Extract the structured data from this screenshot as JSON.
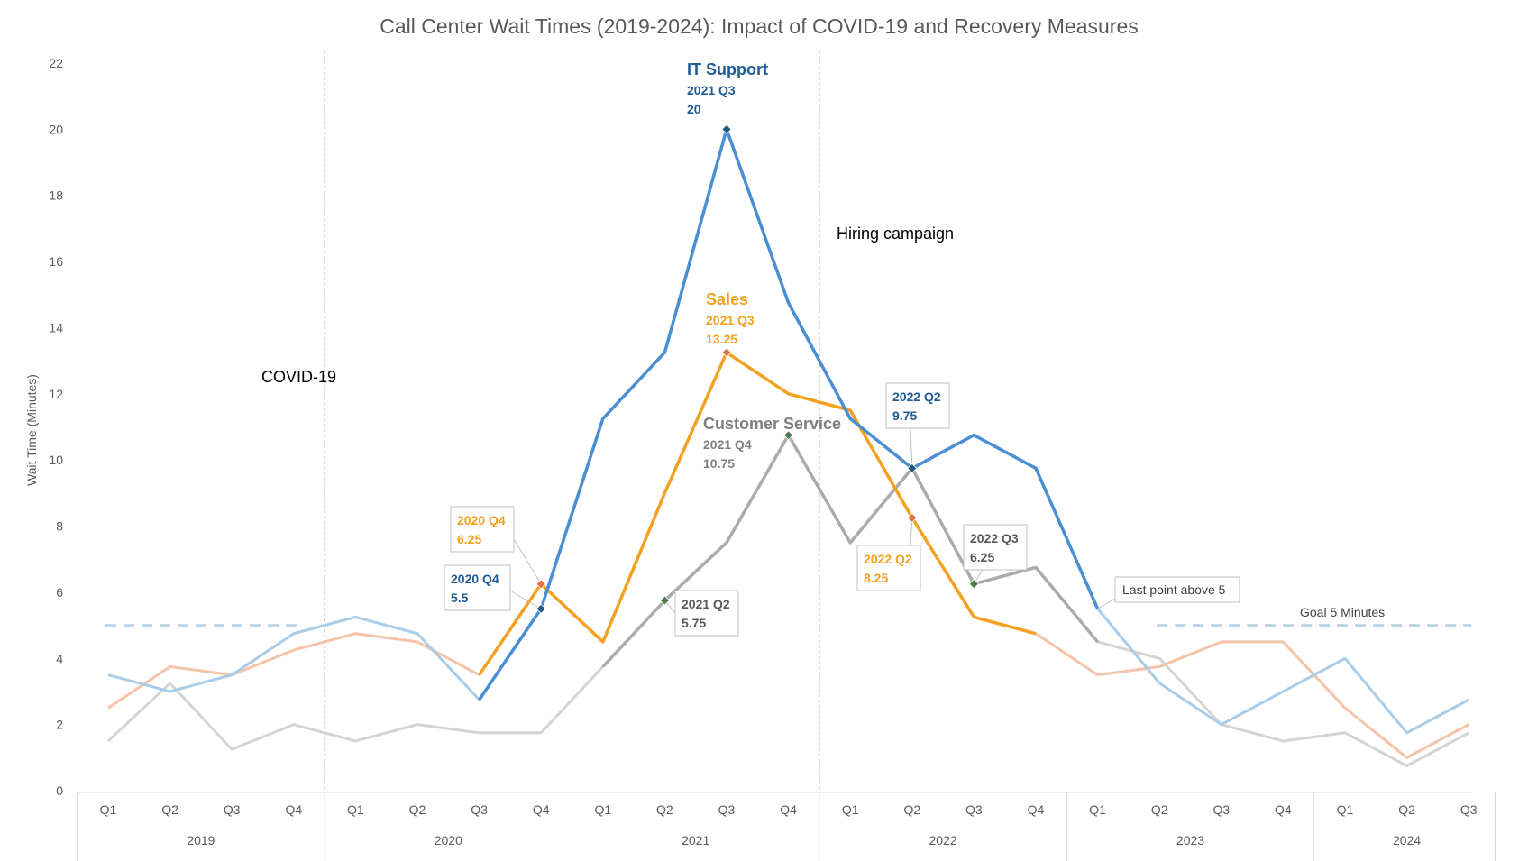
{
  "chart_data": {
    "type": "line",
    "title": "Call Center Wait Times (2019-2024): Impact of COVID-19 and Recovery Measures",
    "ylabel": "Wait Time (Minutes)",
    "xlabel": "",
    "ylim": [
      0,
      22
    ],
    "yticks": [
      0,
      2,
      4,
      6,
      8,
      10,
      12,
      14,
      16,
      18,
      20,
      22
    ],
    "grid": false,
    "legend": "none",
    "years": [
      {
        "label": "2019",
        "quarters": [
          "Q1",
          "Q2",
          "Q3",
          "Q4"
        ]
      },
      {
        "label": "2020",
        "quarters": [
          "Q1",
          "Q2",
          "Q3",
          "Q4"
        ]
      },
      {
        "label": "2021",
        "quarters": [
          "Q1",
          "Q2",
          "Q3",
          "Q4"
        ]
      },
      {
        "label": "2022",
        "quarters": [
          "Q1",
          "Q2",
          "Q3",
          "Q4"
        ]
      },
      {
        "label": "2023",
        "quarters": [
          "Q1",
          "Q2",
          "Q3",
          "Q4"
        ]
      },
      {
        "label": "2024",
        "quarters": [
          "Q1",
          "Q2",
          "Q3"
        ]
      }
    ],
    "series": [
      {
        "key": "it",
        "color": "#4A8ED4",
        "faded_color": "#A9CCE8",
        "marker_color": "#1F5C7A",
        "values": [
          3.5,
          3.0,
          3.5,
          4.75,
          5.25,
          4.75,
          2.75,
          5.5,
          11.25,
          13.25,
          20,
          14.75,
          11.25,
          9.75,
          10.75,
          9.75,
          5.5,
          3.25,
          2.0,
          3.0,
          4.0,
          1.75,
          2.75
        ],
        "highlight_range": [
          6,
          16
        ]
      },
      {
        "key": "sales",
        "color": "#F4A020",
        "faded_color": "#F5C3A8",
        "marker_color": "#E07040",
        "values": [
          2.5,
          3.75,
          3.5,
          4.25,
          4.75,
          4.5,
          3.5,
          6.25,
          4.5,
          9.0,
          13.25,
          12.0,
          11.5,
          8.25,
          5.25,
          4.75,
          3.5,
          3.75,
          4.5,
          4.5,
          2.5,
          1.0,
          2.0
        ],
        "highlight_range": [
          6,
          15
        ]
      },
      {
        "key": "cs",
        "color": "#ABABAB",
        "faded_color": "#D4D4D4",
        "marker_color": "#4F7A4F",
        "values": [
          1.5,
          3.25,
          1.25,
          2.0,
          1.5,
          2.0,
          1.75,
          1.75,
          3.75,
          5.75,
          7.5,
          10.75,
          7.5,
          9.75,
          6.25,
          6.75,
          4.5,
          4.0,
          2.0,
          1.5,
          1.75,
          0.75,
          1.75
        ],
        "highlight_range": [
          8,
          16
        ]
      }
    ],
    "markers": [
      {
        "series": "it",
        "index": 7
      },
      {
        "series": "it",
        "index": 10
      },
      {
        "series": "it",
        "index": 13
      },
      {
        "series": "sales",
        "index": 7
      },
      {
        "series": "sales",
        "index": 10
      },
      {
        "series": "sales",
        "index": 13
      },
      {
        "series": "cs",
        "index": 9
      },
      {
        "series": "cs",
        "index": 11
      },
      {
        "series": "cs",
        "index": 14
      }
    ],
    "vertical_lines": [
      {
        "after_index": 3,
        "label": "COVID-19",
        "color": "#F08C6C"
      },
      {
        "after_index": 11,
        "label": "Hiring campaign",
        "color": "#F08C6C"
      }
    ],
    "goal": {
      "value": 5,
      "label": "Goal 5 Minutes",
      "color": "#BCD6E6",
      "segments": [
        [
          0,
          3
        ],
        [
          17,
          22
        ]
      ]
    },
    "labels": {
      "it_peak": {
        "name": "IT Support",
        "period": "2021 Q3",
        "value": "20",
        "color": "#1F5C96"
      },
      "sales_peak": {
        "name": "Sales",
        "period": "2021 Q3",
        "value": "13.25",
        "color": "#F4A020"
      },
      "cs_peak": {
        "name": "Customer Service",
        "period": "2021 Q4",
        "value": "10.75",
        "color": "#7F7F7F"
      }
    },
    "callouts": [
      {
        "id": "sales-2020q4",
        "period": "2020 Q4",
        "value": "6.25",
        "color": "#F4A020"
      },
      {
        "id": "it-2020q4",
        "period": "2020 Q4",
        "value": "5.5",
        "color": "#1F5C96"
      },
      {
        "id": "cs-2021q2",
        "period": "2021 Q2",
        "value": "5.75",
        "color": "#595959"
      },
      {
        "id": "it-2022q2",
        "period": "2022 Q2",
        "value": "9.75",
        "color": "#1F5C96"
      },
      {
        "id": "sales-2022q2",
        "period": "2022 Q2",
        "value": "8.25",
        "color": "#F4A020"
      },
      {
        "id": "cs-2022q3",
        "period": "2022 Q3",
        "value": "6.25",
        "color": "#595959"
      },
      {
        "id": "last-above-5",
        "text": "Last point above 5",
        "color": "#404040"
      }
    ]
  }
}
